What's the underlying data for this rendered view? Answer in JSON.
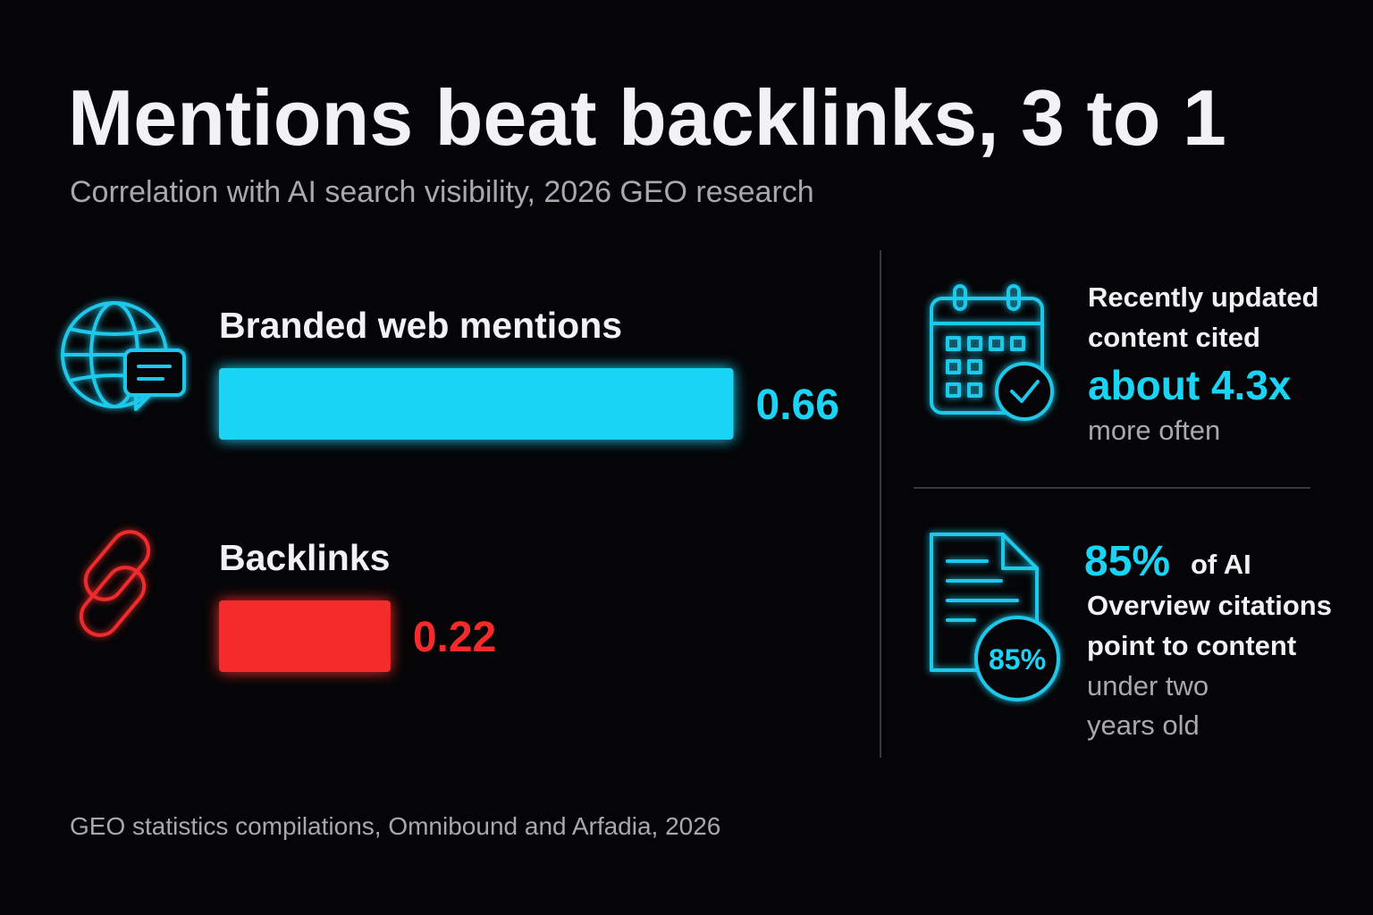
{
  "chart_data": {
    "type": "hbar",
    "title": "Mentions beat backlinks, 3 to 1",
    "subtitle": "Correlation with AI search visibility, 2026 GEO research",
    "categories": [
      "Branded web mentions",
      "Backlinks"
    ],
    "values": [
      0.66,
      0.22
    ],
    "colors": [
      "#1ad4f5",
      "#f52a2a"
    ],
    "source": "GEO statistics compilations, Omnibound and Arfadia, 2026"
  },
  "stats": [
    {
      "lines": [
        "Recently updated",
        "content cited"
      ],
      "highlight": "about 4.3x",
      "tail": [
        "more often"
      ]
    },
    {
      "highlight": "85%",
      "highlight_rest": "of AI",
      "lines": [
        "Overview citations",
        "point to content"
      ],
      "tail": [
        "under two",
        "years old"
      ],
      "badge": "85%"
    }
  ]
}
